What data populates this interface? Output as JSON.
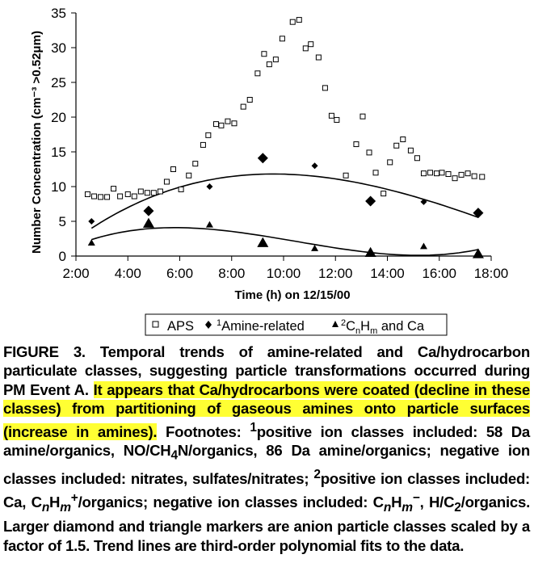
{
  "chart_data": {
    "type": "scatter",
    "title": "",
    "xlabel": "Time (h) on 12/15/00",
    "ylabel": "Number Concentration (cm⁻³ >0.52μm)",
    "xlim": [
      2,
      18
    ],
    "ylim": [
      0,
      35
    ],
    "x_ticks": [
      "2:00",
      "4:00",
      "6:00",
      "8:00",
      "10:00",
      "12:00",
      "14:00",
      "16:00",
      "18:00"
    ],
    "y_ticks": [
      "0",
      "5",
      "10",
      "15",
      "20",
      "25",
      "30",
      "35"
    ],
    "grid": false,
    "legend": {
      "placement": "bottom",
      "entries": [
        "APS",
        "¹Amine-related",
        "²CnHm and Ca"
      ],
      "aps_label": "APS",
      "amine_label": "Amine-related",
      "amine_sup": "1",
      "ca_sup": "2",
      "ca_c": "C",
      "ca_n": "n",
      "ca_h": "H",
      "ca_m": "m",
      "ca_rest": " and Ca"
    },
    "series": [
      {
        "name": "APS",
        "marker": "open-square",
        "points": [
          [
            2.45,
            8.9
          ],
          [
            2.7,
            8.6
          ],
          [
            2.95,
            8.5
          ],
          [
            3.2,
            8.5
          ],
          [
            3.45,
            9.7
          ],
          [
            3.7,
            8.6
          ],
          [
            4.0,
            8.9
          ],
          [
            4.25,
            8.6
          ],
          [
            4.5,
            9.3
          ],
          [
            4.75,
            9.1
          ],
          [
            5.0,
            9.1
          ],
          [
            5.25,
            9.3
          ],
          [
            5.5,
            10.7
          ],
          [
            5.75,
            12.5
          ],
          [
            6.05,
            9.6
          ],
          [
            6.35,
            11.6
          ],
          [
            6.6,
            13.3
          ],
          [
            6.9,
            16.0
          ],
          [
            7.1,
            17.4
          ],
          [
            7.4,
            19.0
          ],
          [
            7.6,
            18.8
          ],
          [
            7.85,
            19.4
          ],
          [
            8.1,
            19.1
          ],
          [
            8.45,
            21.5
          ],
          [
            8.7,
            22.5
          ],
          [
            9.0,
            26.3
          ],
          [
            9.25,
            29.1
          ],
          [
            9.45,
            27.6
          ],
          [
            9.7,
            28.3
          ],
          [
            9.95,
            31.3
          ],
          [
            10.35,
            33.7
          ],
          [
            10.6,
            34.0
          ],
          [
            10.85,
            29.9
          ],
          [
            11.05,
            30.5
          ],
          [
            11.35,
            28.6
          ],
          [
            11.6,
            24.2
          ],
          [
            11.85,
            20.2
          ],
          [
            12.05,
            19.6
          ],
          [
            12.4,
            11.6
          ],
          [
            12.8,
            16.1
          ],
          [
            13.05,
            20.1
          ],
          [
            13.3,
            14.9
          ],
          [
            13.55,
            12.0
          ],
          [
            13.85,
            9.0
          ],
          [
            14.1,
            13.5
          ],
          [
            14.35,
            15.9
          ],
          [
            14.6,
            16.8
          ],
          [
            14.9,
            15.2
          ],
          [
            15.15,
            14.1
          ],
          [
            15.4,
            11.9
          ],
          [
            15.65,
            12.0
          ],
          [
            15.9,
            11.9
          ],
          [
            16.1,
            12.0
          ],
          [
            16.35,
            11.8
          ],
          [
            16.6,
            11.2
          ],
          [
            16.85,
            11.7
          ],
          [
            17.1,
            11.9
          ],
          [
            17.35,
            11.5
          ],
          [
            17.65,
            11.4
          ]
        ]
      },
      {
        "name": "Amine-related",
        "marker": "diamond",
        "points": [
          [
            2.6,
            5.0,
            "small"
          ],
          [
            4.8,
            6.5,
            "large"
          ],
          [
            7.15,
            10.0,
            "small"
          ],
          [
            9.2,
            14.1,
            "large"
          ],
          [
            11.2,
            13.0,
            "small"
          ],
          [
            13.35,
            7.9,
            "large"
          ],
          [
            15.4,
            7.8,
            "small"
          ],
          [
            17.5,
            6.2,
            "large"
          ]
        ],
        "trend": "third-order polynomial"
      },
      {
        "name": "CnHm and Ca",
        "marker": "triangle",
        "points": [
          [
            2.6,
            1.9,
            "small"
          ],
          [
            4.8,
            4.7,
            "large"
          ],
          [
            7.15,
            4.5,
            "small"
          ],
          [
            9.2,
            1.9,
            "large"
          ],
          [
            11.2,
            1.1,
            "small"
          ],
          [
            13.35,
            0.5,
            "large"
          ],
          [
            15.4,
            1.4,
            "small"
          ],
          [
            17.5,
            0.3,
            "large"
          ]
        ],
        "trend": "third-order polynomial"
      }
    ]
  },
  "caption": {
    "p1": "FIGURE 3.  Temporal trends of amine-related and Ca/hydrocarbon particulate classes, suggesting particle transformations occurred during PM Event A. ",
    "highlight": "It appears that Ca/hydrocarbons were coated (decline in these classes) from partitioning of gaseous amines onto particle surfaces (increase in amines).",
    "p2": " Footnotes: ",
    "s1": "1",
    "p3": "positive ion classes included:  58 Da amine/organics, NO/CH",
    "sub4": "4",
    "p4": "N/organics, 86 Da amine/organics; negative ion classes included:  nitrates, sulfates/nitrates; ",
    "s2": "2",
    "p5": "positive ion classes included:  Ca, C",
    "n1": "n",
    "h1": "H",
    "m1": "m",
    "plus": "+",
    "p6": "/organics; negative ion classes included:  C",
    "n2": "n",
    "h2": "H",
    "m2": "m",
    "minus": "−",
    "p7": ", H/C",
    "sub2": "2",
    "p8": "/organics. Larger diamond and triangle markers are anion particle classes scaled by a factor of 1.5. Trend lines are third-order polynomial fits to the data."
  }
}
